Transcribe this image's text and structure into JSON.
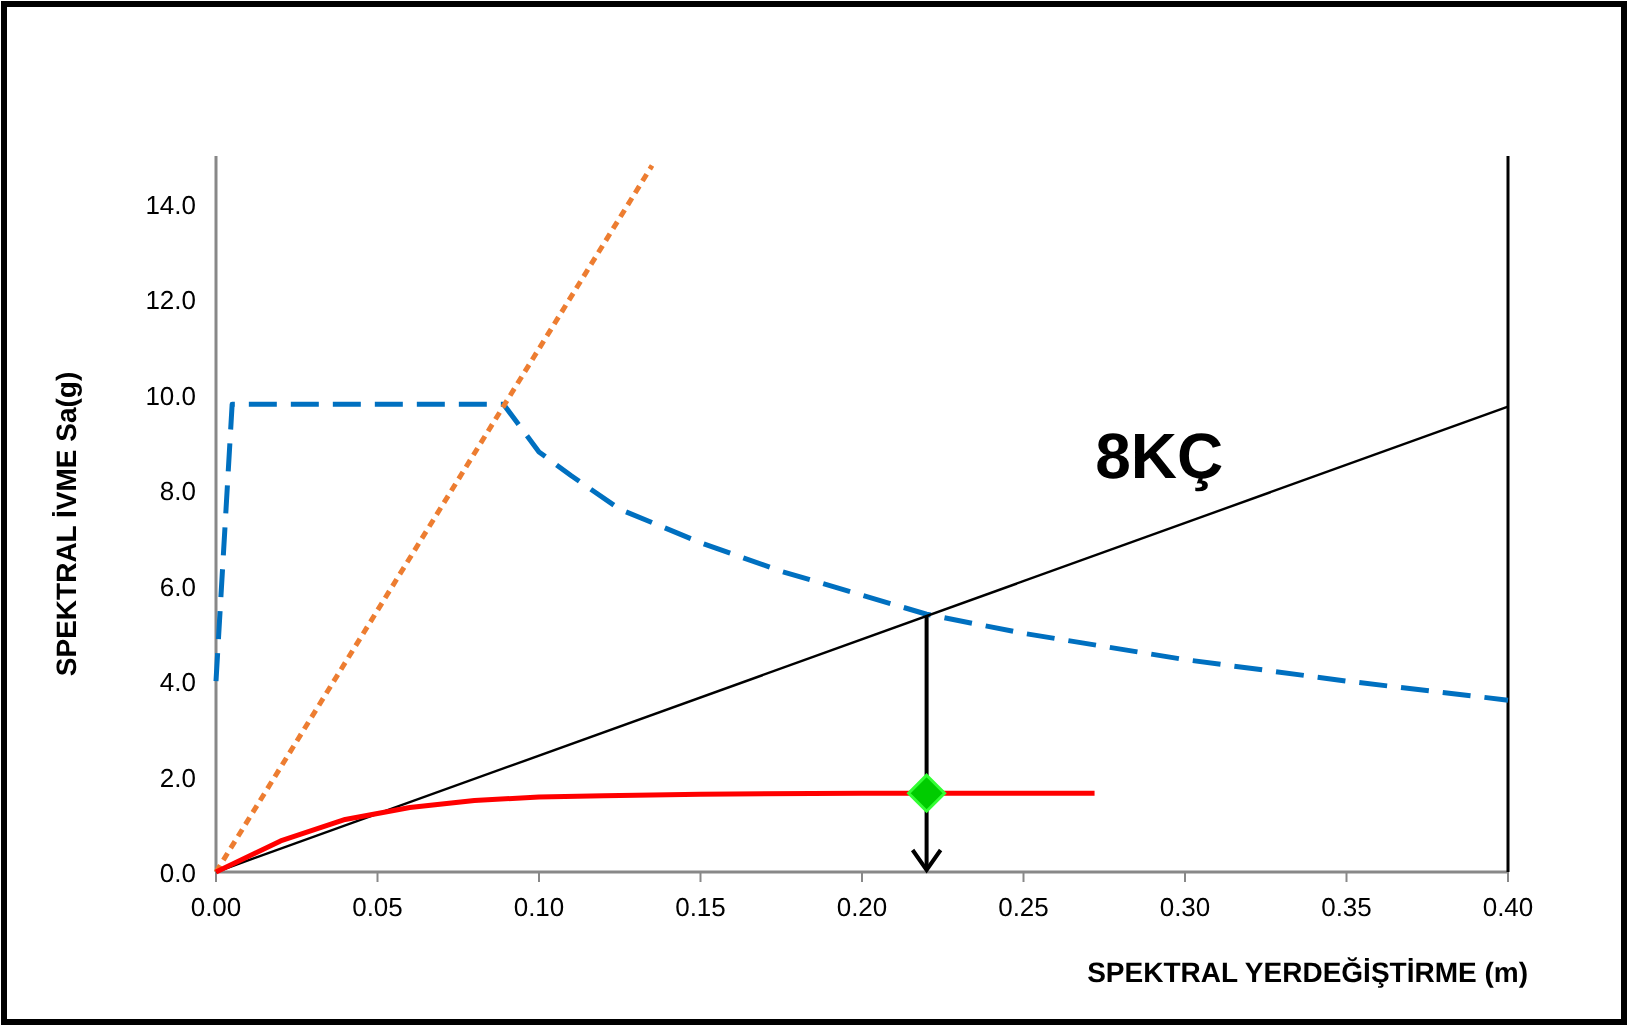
{
  "chart_data": {
    "type": "line",
    "xlabel": "SPEKTRAL YERDEĞİŞTİRME (m)",
    "ylabel": "SPEKTRAL İVME  Sa(g)",
    "annotations": [
      "8KÇ"
    ],
    "xlim": [
      0,
      0.4
    ],
    "xticks": [
      {
        "value": 0,
        "label": "0.00"
      },
      0.05,
      {
        "value": 0.1,
        "label": "0.10"
      },
      0.15,
      {
        "value": 0.2,
        "label": "0.20"
      },
      0.25,
      {
        "value": 0.3,
        "label": "0.30"
      },
      0.35,
      {
        "value": 0.4,
        "label": "0.40"
      }
    ],
    "ylim": [
      0,
      15
    ],
    "yticks": [
      {
        "value": 0,
        "label": "0.0"
      },
      {
        "value": 2,
        "label": "2.0"
      },
      {
        "value": 4,
        "label": "4.0"
      },
      {
        "value": 6,
        "label": "6.0"
      },
      {
        "value": 8,
        "label": "8.0"
      },
      {
        "value": 10,
        "label": "10.0"
      },
      {
        "value": 12,
        "label": "12.0"
      },
      {
        "value": 14,
        "label": "14.0"
      }
    ],
    "grid": false,
    "series": [
      {
        "color": "#0070c0",
        "line_style": "dashed",
        "x": [
          0,
          0.005,
          0.089,
          0.1,
          0.11,
          0.125,
          0.15,
          0.175,
          0.2,
          0.22,
          0.25,
          0.3,
          0.35,
          0.4
        ],
        "values": [
          4.0,
          9.8,
          9.8,
          8.8,
          8.3,
          7.6,
          6.9,
          6.3,
          5.8,
          5.4,
          5.0,
          4.45,
          4.0,
          3.6
        ]
      },
      {
        "color": "#ed7d31",
        "line_style": "dotted",
        "x": [
          0,
          0.135
        ],
        "values": [
          0,
          14.8
        ]
      },
      {
        "color": "#000000",
        "line_style": "solid",
        "x": [
          0,
          0.4
        ],
        "values": [
          0,
          9.75
        ]
      },
      {
        "color": "#ff0000",
        "line_style": "solid",
        "x": [
          0,
          0.02,
          0.04,
          0.06,
          0.08,
          0.1,
          0.12,
          0.15,
          0.2,
          0.272
        ],
        "values": [
          0,
          0.65,
          1.1,
          1.35,
          1.5,
          1.57,
          1.6,
          1.63,
          1.65,
          1.65
        ]
      },
      {
        "type": "scatter",
        "color": "#00cc00",
        "marker": "diamond",
        "x": [
          0.22
        ],
        "values": [
          1.65
        ]
      }
    ]
  }
}
